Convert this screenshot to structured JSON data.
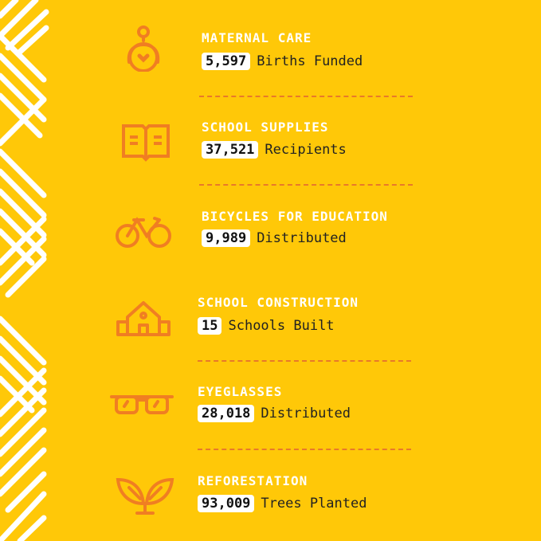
{
  "colors": {
    "background": "#FFC808",
    "accent": "#F07E22",
    "text_title": "#FFFFFF"
  },
  "items": [
    {
      "title": "MATERNAL CARE",
      "value": "5,597",
      "label": "Births Funded",
      "icon": "mother-baby-heart-icon"
    },
    {
      "title": "SCHOOL SUPPLIES",
      "value": "37,521",
      "label": "Recipients",
      "icon": "open-book-icon"
    },
    {
      "title": "BICYCLES FOR EDUCATION",
      "value": "9,989",
      "label": "Distributed",
      "icon": "bicycle-icon"
    },
    {
      "title": "SCHOOL CONSTRUCTION",
      "value": "15",
      "label": "Schools Built",
      "icon": "school-building-icon"
    },
    {
      "title": "EYEGLASSES",
      "value": "28,018",
      "label": "Distributed",
      "icon": "eyeglasses-icon"
    },
    {
      "title": "REFORESTATION",
      "value": "93,009",
      "label": "Trees Planted",
      "icon": "sprout-icon"
    }
  ]
}
